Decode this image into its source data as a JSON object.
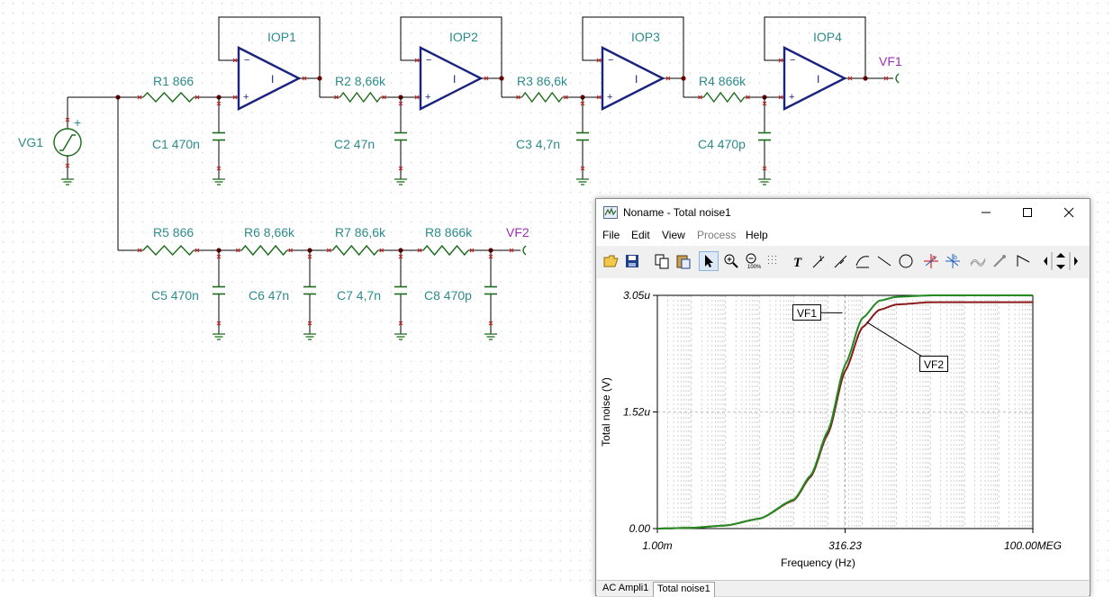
{
  "schematic": {
    "source": "VG1",
    "source_polarity": "+",
    "opamps": [
      "IOP1",
      "IOP2",
      "IOP3",
      "IOP4"
    ],
    "opamp_gain_symbol": "I",
    "top_resistors": [
      "R1 866",
      "R2 8,66k",
      "R3 86,6k",
      "R4 866k"
    ],
    "top_capacitors": [
      "C1 470n",
      "C2 47n",
      "C3 4,7n",
      "C4 470p"
    ],
    "bottom_resistors": [
      "R5 866",
      "R6 8,66k",
      "R7 86,6k",
      "R8 866k"
    ],
    "bottom_capacitors": [
      "C5 470n",
      "C6 47n",
      "C7 4,7n",
      "C8 470p"
    ],
    "outputs": [
      "VF1",
      "VF2"
    ]
  },
  "window": {
    "title": "Noname - Total noise1",
    "menu": [
      "File",
      "Edit",
      "View",
      "Process",
      "Help"
    ],
    "tabs": [
      "AC Ampli1",
      "Total noise1"
    ]
  },
  "chart_data": {
    "type": "line",
    "xlabel": "Frequency (Hz)",
    "ylabel": "Total noise (V)",
    "x_scale": "log",
    "x_ticks": [
      "1.00m",
      "316.23",
      "100.00MEG"
    ],
    "x_range": [
      0.001,
      100000000
    ],
    "y_ticks": [
      "0.00",
      "1.52u",
      "3.05u"
    ],
    "y_range": [
      0,
      3.05e-06
    ],
    "grid": true,
    "series": [
      {
        "name": "VF1",
        "color": "#228b22",
        "points": [
          [
            0.001,
            0
          ],
          [
            0.01,
            1e-08
          ],
          [
            0.1,
            4e-08
          ],
          [
            1,
            1.3e-07
          ],
          [
            10,
            3.8e-07
          ],
          [
            31.6,
            7e-07
          ],
          [
            100,
            1.28e-06
          ],
          [
            316,
            2.14e-06
          ],
          [
            1000,
            2.75e-06
          ],
          [
            3160,
            2.98e-06
          ],
          [
            10000,
            3.03e-06
          ],
          [
            100000,
            3.05e-06
          ],
          [
            100000000,
            3.05e-06
          ]
        ]
      },
      {
        "name": "VF2",
        "color": "#8b1a1a",
        "points": [
          [
            0.001,
            0
          ],
          [
            0.01,
            1e-08
          ],
          [
            0.1,
            4e-08
          ],
          [
            1,
            1.3e-07
          ],
          [
            10,
            3.7e-07
          ],
          [
            31.6,
            6.8e-07
          ],
          [
            100,
            1.24e-06
          ],
          [
            316,
            2.06e-06
          ],
          [
            1000,
            2.63e-06
          ],
          [
            3160,
            2.86e-06
          ],
          [
            10000,
            2.93e-06
          ],
          [
            100000,
            2.96e-06
          ],
          [
            100000000,
            2.96e-06
          ]
        ]
      }
    ]
  }
}
